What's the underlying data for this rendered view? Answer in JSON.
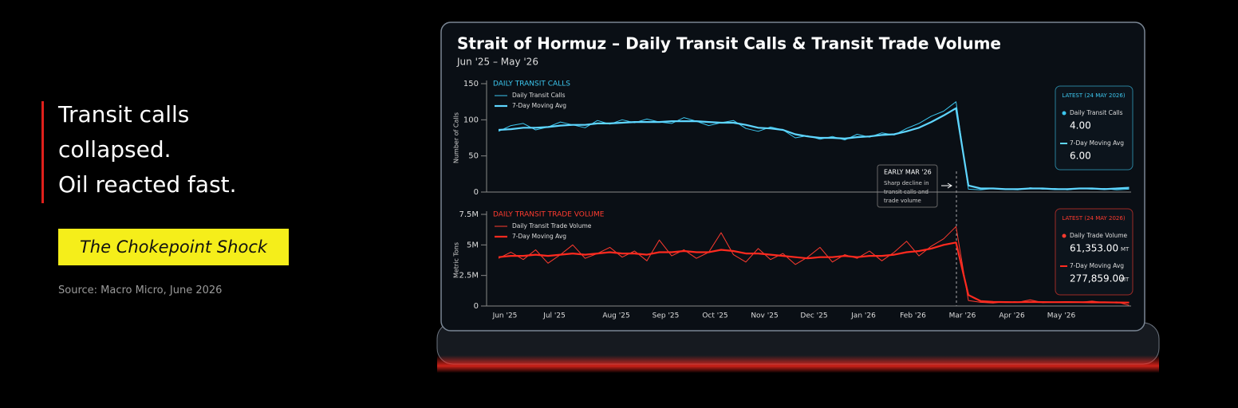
{
  "headline": [
    "Transit calls",
    "collapsed.",
    "Oil reacted fast."
  ],
  "tag": "The Chokepoint Shock",
  "source": "Source: Macro Micro, June 2026",
  "chart_title": "Strait of Hormuz – Daily Transit Calls & Transit Trade Volume",
  "subtitle": "Jun '25 – May '26",
  "annotation": {
    "title": "EARLY MAR '26",
    "lines": [
      "Sharp decline in",
      "transit calls and",
      "trade volume"
    ]
  },
  "chart_data": [
    {
      "type": "line",
      "title": "DAILY TRANSIT CALLS",
      "y_label": "Number of Calls",
      "ylim": [
        0,
        150
      ],
      "yticks": [
        0,
        50,
        100,
        150
      ],
      "series": [
        {
          "name": "Daily Transit Calls",
          "color": "#3cc6ee",
          "width": 1,
          "values": [
            84,
            92,
            95,
            86,
            90,
            97,
            93,
            89,
            99,
            94,
            100,
            96,
            101,
            97,
            95,
            103,
            98,
            92,
            96,
            99,
            88,
            84,
            90,
            86,
            75,
            78,
            73,
            77,
            72,
            80,
            76,
            82,
            79,
            88,
            95,
            105,
            112,
            125,
            4,
            3,
            5,
            4,
            3,
            6,
            4,
            5,
            3,
            5,
            4,
            5,
            3,
            4
          ]
        },
        {
          "name": "7-Day Moving Avg",
          "color": "#5fd6ff",
          "width": 2.2,
          "values": [
            86,
            87,
            89,
            89,
            90,
            92,
            93,
            93,
            95,
            95,
            96,
            97,
            97,
            97,
            98,
            98,
            98,
            97,
            96,
            96,
            93,
            89,
            88,
            86,
            80,
            77,
            75,
            75,
            74,
            76,
            77,
            79,
            80,
            84,
            89,
            97,
            106,
            116,
            9,
            5,
            5,
            4,
            4,
            5,
            5,
            4,
            4,
            5,
            5,
            4,
            5,
            6
          ]
        }
      ],
      "latest": {
        "title": "LATEST (24 MAY 2026)",
        "items": [
          {
            "name": "Daily Transit Calls",
            "label": "4.00"
          },
          {
            "name": "7-Day Moving Avg",
            "label": "6.00"
          }
        ]
      }
    },
    {
      "type": "line",
      "title": "DAILY TRANSIT TRADE VOLUME",
      "y_label": "Metric Tons",
      "ylim": [
        0,
        7500000
      ],
      "yticks": [
        0,
        {
          "value": 2500000,
          "label": "2.5M"
        },
        {
          "value": 5000000,
          "label": "5M"
        },
        {
          "value": 7500000,
          "label": "7.5M"
        }
      ],
      "categories": [
        "Jun '25",
        null,
        null,
        null,
        "Jul '25",
        null,
        null,
        null,
        null,
        "Aug '25",
        null,
        null,
        null,
        "Sep '25",
        null,
        null,
        null,
        "Oct '25",
        null,
        null,
        null,
        "Nov '25",
        null,
        null,
        null,
        "Dec '25",
        null,
        null,
        null,
        "Jan '26",
        null,
        null,
        null,
        "Feb '26",
        null,
        null,
        null,
        "Mar '26",
        null,
        null,
        null,
        "Apr '26",
        null,
        null,
        null,
        "May '26",
        null,
        null,
        null,
        null,
        null,
        null
      ],
      "series": [
        {
          "name": "Daily Transit Trade Volume",
          "color": "#ff3b2f",
          "width": 1,
          "values": [
            3900000,
            4400000,
            3800000,
            4600000,
            3500000,
            4200000,
            5000000,
            3900000,
            4300000,
            4800000,
            4000000,
            4500000,
            3700000,
            5400000,
            4100000,
            4600000,
            3900000,
            4400000,
            6000000,
            4200000,
            3600000,
            4700000,
            3800000,
            4300000,
            3400000,
            4000000,
            4800000,
            3600000,
            4200000,
            3900000,
            4500000,
            3700000,
            4400000,
            5300000,
            4100000,
            4900000,
            5500000,
            6500000,
            450000,
            300000,
            250000,
            350000,
            300000,
            500000,
            280000,
            320000,
            350000,
            300000,
            400000,
            280000,
            330000,
            61353
          ]
        },
        {
          "name": "7-Day Moving Avg",
          "color": "#ff2a1f",
          "width": 2.2,
          "values": [
            4000000,
            4100000,
            4100000,
            4200000,
            4100000,
            4200000,
            4300000,
            4200000,
            4300000,
            4400000,
            4300000,
            4300000,
            4200000,
            4400000,
            4400000,
            4500000,
            4400000,
            4400000,
            4600000,
            4500000,
            4300000,
            4300000,
            4200000,
            4100000,
            4000000,
            3900000,
            4000000,
            4000000,
            4100000,
            4000000,
            4100000,
            4100000,
            4200000,
            4400000,
            4500000,
            4700000,
            5000000,
            5200000,
            900000,
            400000,
            330000,
            320000,
            310000,
            330000,
            320000,
            310000,
            320000,
            310000,
            300000,
            300000,
            290000,
            277859
          ]
        }
      ],
      "latest": {
        "title": "LATEST (24 MAY 2026)",
        "unit": "MT",
        "items": [
          {
            "name": "Daily Trade Volume",
            "label": "61,353.00"
          },
          {
            "name": "7-Day Moving Avg",
            "label": "277,859.00"
          }
        ]
      }
    }
  ]
}
